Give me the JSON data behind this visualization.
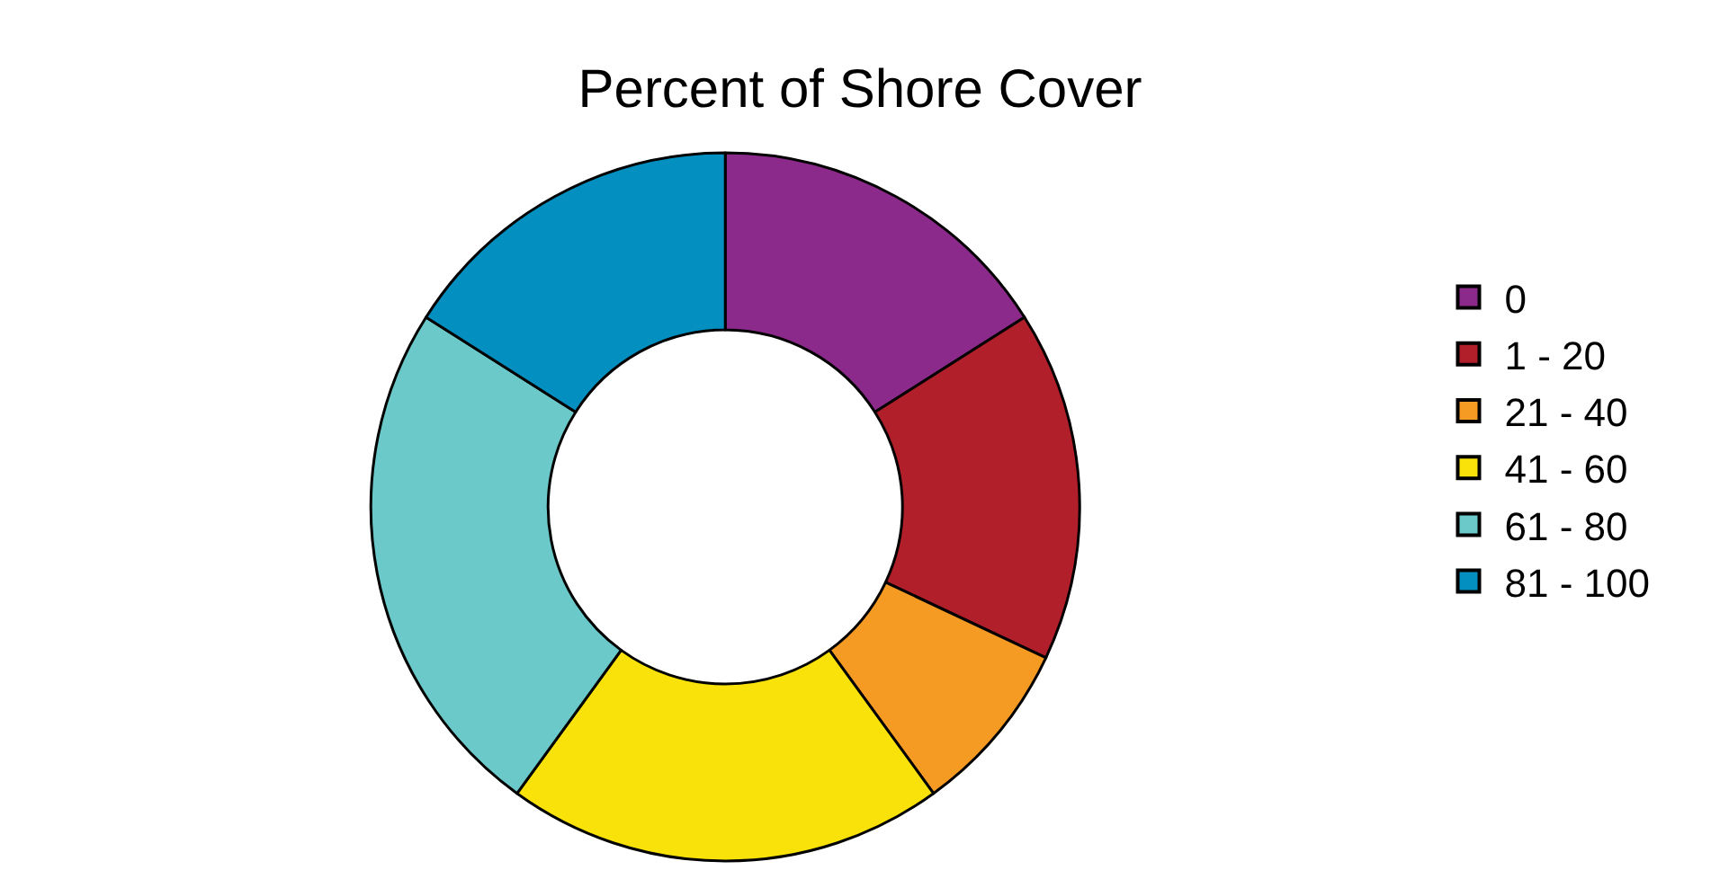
{
  "chart_data": {
    "type": "donut",
    "title": "Percent of Shore Cover",
    "categories": [
      "0",
      "1 - 20",
      "21 - 40",
      "41 - 60",
      "61 - 80",
      "81 - 100"
    ],
    "values": [
      16,
      16,
      8,
      20,
      24,
      16
    ],
    "colors": [
      "#8b2a8b",
      "#b01f2a",
      "#f59a23",
      "#f8e20a",
      "#6cc9c9",
      "#0390c0"
    ],
    "legend": "right"
  }
}
